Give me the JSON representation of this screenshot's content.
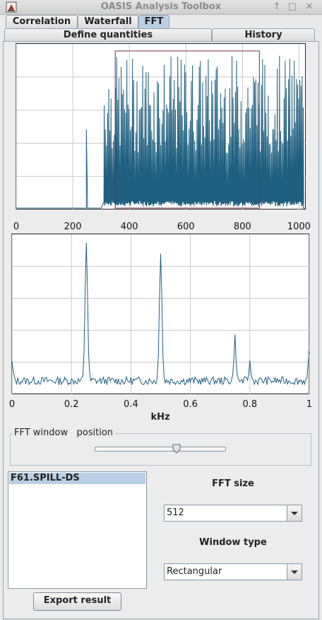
{
  "window": {
    "title": "OASIS Analysis Toolbox",
    "controls": [
      "↑",
      "□",
      "✕"
    ]
  },
  "tabs_top": [
    {
      "label": "Correlation",
      "active": false
    },
    {
      "label": "Waterfall",
      "active": false
    },
    {
      "label": "FFT",
      "active": true
    }
  ],
  "tabs_second": [
    {
      "label": "Define quantities"
    },
    {
      "label": "History"
    }
  ],
  "colors": {
    "trace": "#1f5f7f",
    "marker_rect": "#7a2a45",
    "grid": "#c8c8c8",
    "selection": "#b8cfe5"
  },
  "chart_data": [
    {
      "type": "line",
      "name": "time-signal",
      "x_ticks": [
        "0",
        "200",
        "400",
        "600",
        "800",
        "1000"
      ],
      "xlim": [
        0,
        1024
      ],
      "ylim": [
        0,
        1
      ],
      "grid": true,
      "marker_range_x": [
        350,
        860
      ],
      "signal": {
        "burst_1_x": [
          248,
          252
        ],
        "spikes_start": 310,
        "spikes_end": 1015,
        "spike_spacing": 4,
        "baseline": 0
      }
    },
    {
      "type": "line",
      "name": "fft-spectrum",
      "x_ticks": [
        "0",
        "0.2",
        "0.4",
        "0.6",
        "0.8",
        "1"
      ],
      "xlabel": "kHz",
      "xlim": [
        0,
        1
      ],
      "ylim": [
        0,
        1
      ],
      "grid": true,
      "peaks": [
        {
          "x": 0.0,
          "y": 0.12
        },
        {
          "x": 0.25,
          "y": 0.97
        },
        {
          "x": 0.5,
          "y": 0.9
        },
        {
          "x": 0.75,
          "y": 0.3
        },
        {
          "x": 0.8,
          "y": 0.12
        },
        {
          "x": 1.0,
          "y": 0.18
        }
      ],
      "noise_floor": 0.04
    }
  ],
  "fft_window": {
    "label": "FFT window",
    "position_label": "position",
    "slider_value": 0.63
  },
  "signals": {
    "selected": "F61.SPILL-DS"
  },
  "fft_size": {
    "label": "FFT size",
    "value": "512"
  },
  "window_type": {
    "label": "Window type",
    "value": "Rectangular"
  },
  "export_button": "Export result"
}
